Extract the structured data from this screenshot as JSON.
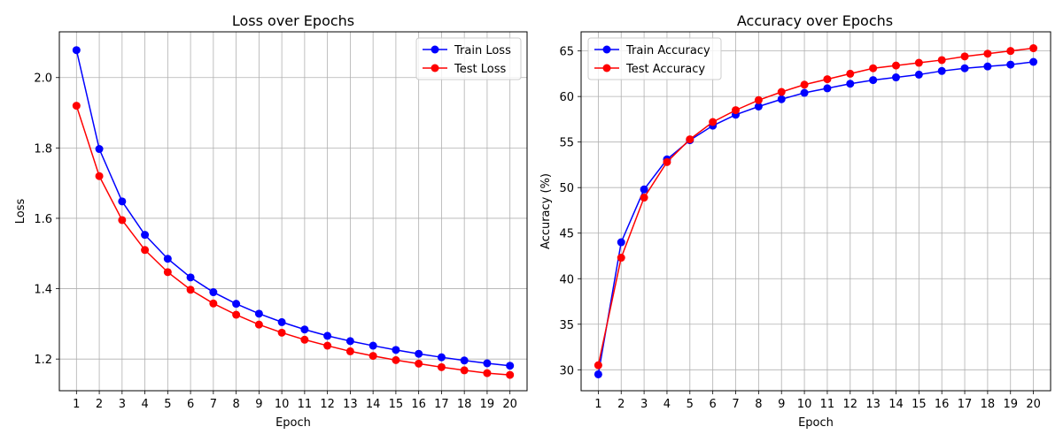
{
  "chart_data": [
    {
      "type": "line",
      "title": "Loss over Epochs",
      "xlabel": "Epoch",
      "ylabel": "Loss",
      "x": [
        1,
        2,
        3,
        4,
        5,
        6,
        7,
        8,
        9,
        10,
        11,
        12,
        13,
        14,
        15,
        16,
        17,
        18,
        19,
        20
      ],
      "xticks": [
        "1",
        "2",
        "3",
        "4",
        "5",
        "6",
        "7",
        "8",
        "9",
        "10",
        "11",
        "12",
        "13",
        "14",
        "15",
        "16",
        "17",
        "18",
        "19",
        "20"
      ],
      "xlim": [
        0.25,
        20.75
      ],
      "ylim": [
        1.11,
        2.13
      ],
      "yticks": [
        "1.2",
        "1.4",
        "1.6",
        "1.8",
        "2.0"
      ],
      "ytick_values": [
        1.2,
        1.4,
        1.6,
        1.8,
        2.0
      ],
      "grid": true,
      "legend_position": "top-right",
      "series": [
        {
          "name": "Train Loss",
          "color": "#0000ff",
          "values": [
            2.078,
            1.797,
            1.648,
            1.553,
            1.485,
            1.432,
            1.39,
            1.357,
            1.329,
            1.305,
            1.284,
            1.266,
            1.251,
            1.238,
            1.226,
            1.215,
            1.205,
            1.196,
            1.188,
            1.181
          ]
        },
        {
          "name": "Test Loss",
          "color": "#ff0000",
          "values": [
            1.92,
            1.72,
            1.595,
            1.51,
            1.447,
            1.397,
            1.358,
            1.326,
            1.298,
            1.275,
            1.255,
            1.238,
            1.222,
            1.209,
            1.197,
            1.187,
            1.177,
            1.168,
            1.16,
            1.155
          ]
        }
      ]
    },
    {
      "type": "line",
      "title": "Accuracy over Epochs",
      "xlabel": "Epoch",
      "ylabel": "Accuracy (%)",
      "x": [
        1,
        2,
        3,
        4,
        5,
        6,
        7,
        8,
        9,
        10,
        11,
        12,
        13,
        14,
        15,
        16,
        17,
        18,
        19,
        20
      ],
      "xticks": [
        "1",
        "2",
        "3",
        "4",
        "5",
        "6",
        "7",
        "8",
        "9",
        "10",
        "11",
        "12",
        "13",
        "14",
        "15",
        "16",
        "17",
        "18",
        "19",
        "20"
      ],
      "xlim": [
        0.25,
        20.75
      ],
      "ylim": [
        27.7,
        67.1
      ],
      "yticks": [
        "30",
        "35",
        "40",
        "45",
        "50",
        "55",
        "60",
        "65"
      ],
      "ytick_values": [
        30,
        35,
        40,
        45,
        50,
        55,
        60,
        65
      ],
      "grid": true,
      "legend_position": "top-left",
      "series": [
        {
          "name": "Train Accuracy",
          "color": "#0000ff",
          "values": [
            29.5,
            44.0,
            49.8,
            53.1,
            55.2,
            56.8,
            58.0,
            58.9,
            59.7,
            60.4,
            60.9,
            61.4,
            61.8,
            62.1,
            62.4,
            62.8,
            63.1,
            63.3,
            63.5,
            63.8
          ]
        },
        {
          "name": "Test Accuracy",
          "color": "#ff0000",
          "values": [
            30.5,
            42.3,
            48.9,
            52.8,
            55.3,
            57.2,
            58.5,
            59.6,
            60.5,
            61.3,
            61.9,
            62.5,
            63.1,
            63.4,
            63.7,
            64.0,
            64.4,
            64.7,
            65.0,
            65.3
          ]
        }
      ]
    }
  ]
}
